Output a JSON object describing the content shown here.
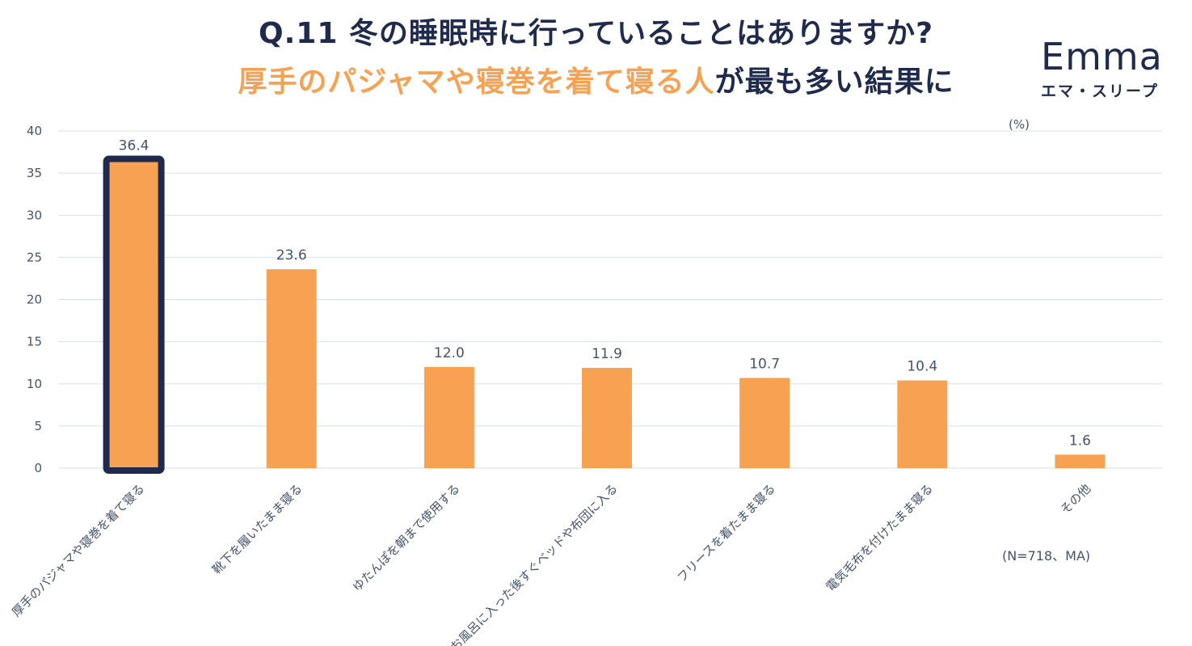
{
  "header": {
    "title_line1": "Q.11 冬の睡眠時に行っていることはありますか?",
    "title_line2_highlight": "厚手のパジャマや寝巻を着て寝る人",
    "title_line2_rest": "が最も多い結果に"
  },
  "logo": {
    "brand": "Emma",
    "sub": "エマ・スリープ"
  },
  "colors": {
    "bar": "#f7a152",
    "highlight_border": "#1f2a4d",
    "title_dark": "#1f2a4d",
    "title_accent": "#f7a152",
    "axis_text": "#44546a",
    "grid": "#d9e0e6"
  },
  "chart_data": {
    "type": "bar",
    "title": "Q.11 冬の睡眠時に行っていることはありますか?",
    "unit_label": "(%)",
    "note": "(N=718、MA)",
    "categories": [
      "厚手のパジャマや寝巻を着て寝る",
      "靴下を履いたまま寝る",
      "ゆたんぽを朝まで使用する",
      "お風呂に入った後すぐベッドや布団に入る",
      "フリースを着たまま寝る",
      "電気毛布を付けたまま寝る",
      "その他"
    ],
    "values": [
      36.4,
      23.6,
      12.0,
      11.9,
      10.7,
      10.4,
      1.6
    ],
    "value_labels": [
      "36.4",
      "23.6",
      "12.0",
      "11.9",
      "10.7",
      "10.4",
      "1.6"
    ],
    "highlighted_index": 0,
    "ylim": [
      0,
      40
    ],
    "yticks": [
      0,
      5,
      10,
      15,
      20,
      25,
      30,
      35,
      40
    ],
    "grid": true
  }
}
